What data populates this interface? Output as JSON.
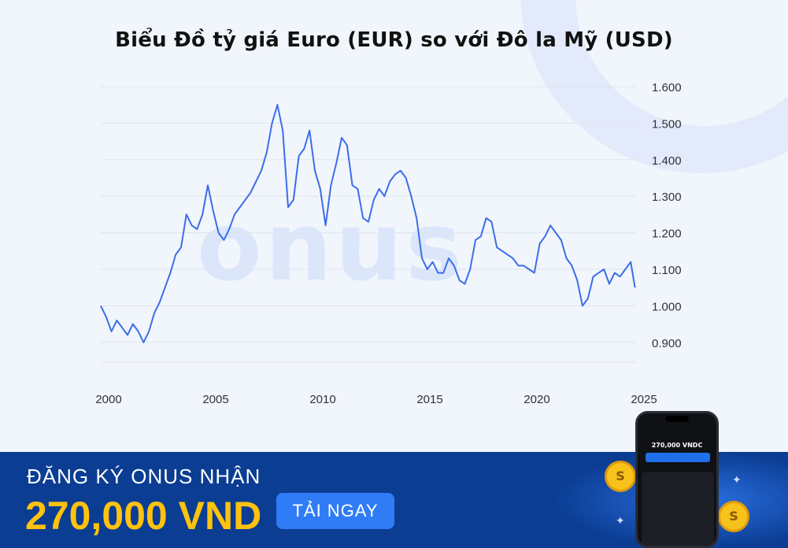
{
  "header": {
    "title": "Biểu Đồ tỷ giá Euro (EUR) so với Đô la Mỹ (USD)"
  },
  "watermark": {
    "text": "onus"
  },
  "chart_data": {
    "type": "line",
    "title": "Biểu Đồ tỷ giá Euro (EUR) so với Đô la Mỹ (USD)",
    "xlabel": "",
    "ylabel": "",
    "xlim": [
      2000,
      2025
    ],
    "ylim": [
      0.85,
      1.6
    ],
    "grid": true,
    "y_axis_side": "right",
    "x_ticks": [
      "2000",
      "2005",
      "2010",
      "2015",
      "2020",
      "2025"
    ],
    "y_ticks": [
      "0.900",
      "1.000",
      "1.100",
      "1.200",
      "1.300",
      "1.400",
      "1.500",
      "1.600"
    ],
    "line_color": "#3b6ee8",
    "series": [
      {
        "x": [
          2000.0,
          2000.25,
          2000.5,
          2000.75,
          2001.0,
          2001.25,
          2001.5,
          2001.75,
          2002.0,
          2002.25,
          2002.5,
          2002.75,
          2003.0,
          2003.25,
          2003.5,
          2003.75,
          2004.0,
          2004.25,
          2004.5,
          2004.75,
          2005.0,
          2005.25,
          2005.5,
          2005.75,
          2006.0,
          2006.25,
          2006.5,
          2006.75,
          2007.0,
          2007.25,
          2007.5,
          2007.75,
          2008.0,
          2008.25,
          2008.5,
          2008.75,
          2009.0,
          2009.25,
          2009.5,
          2009.75,
          2010.0,
          2010.25,
          2010.5,
          2010.75,
          2011.0,
          2011.25,
          2011.5,
          2011.75,
          2012.0,
          2012.25,
          2012.5,
          2012.75,
          2013.0,
          2013.25,
          2013.5,
          2013.75,
          2014.0,
          2014.25,
          2014.5,
          2014.75,
          2015.0,
          2015.25,
          2015.5,
          2015.75,
          2016.0,
          2016.25,
          2016.5,
          2016.75,
          2017.0,
          2017.25,
          2017.5,
          2017.75,
          2018.0,
          2018.25,
          2018.5,
          2018.75,
          2019.0,
          2019.25,
          2019.5,
          2019.75,
          2020.0,
          2020.25,
          2020.5,
          2020.75,
          2021.0,
          2021.25,
          2021.5,
          2021.75,
          2022.0,
          2022.25,
          2022.5,
          2022.75,
          2023.0,
          2023.25,
          2023.5,
          2023.75,
          2024.0,
          2024.25,
          2024.5,
          2024.75,
          2024.95
        ],
        "y": [
          1.0,
          0.97,
          0.93,
          0.96,
          0.94,
          0.92,
          0.95,
          0.93,
          0.9,
          0.93,
          0.98,
          1.01,
          1.05,
          1.09,
          1.14,
          1.16,
          1.25,
          1.22,
          1.21,
          1.25,
          1.33,
          1.26,
          1.2,
          1.18,
          1.21,
          1.25,
          1.27,
          1.29,
          1.31,
          1.34,
          1.37,
          1.42,
          1.5,
          1.55,
          1.48,
          1.27,
          1.29,
          1.41,
          1.43,
          1.48,
          1.37,
          1.32,
          1.22,
          1.33,
          1.39,
          1.46,
          1.44,
          1.33,
          1.32,
          1.24,
          1.23,
          1.29,
          1.32,
          1.3,
          1.34,
          1.36,
          1.37,
          1.35,
          1.3,
          1.24,
          1.13,
          1.1,
          1.12,
          1.09,
          1.09,
          1.13,
          1.11,
          1.07,
          1.06,
          1.1,
          1.18,
          1.19,
          1.24,
          1.23,
          1.16,
          1.15,
          1.14,
          1.13,
          1.11,
          1.11,
          1.1,
          1.09,
          1.17,
          1.19,
          1.22,
          1.2,
          1.18,
          1.13,
          1.11,
          1.07,
          1.0,
          1.02,
          1.08,
          1.09,
          1.1,
          1.06,
          1.09,
          1.08,
          1.1,
          1.12,
          1.05
        ]
      }
    ]
  },
  "banner": {
    "line1": "ĐĂNG KÝ ONUS NHẬN",
    "line2": "270,000 VND",
    "cta_label": "TẢI NGAY",
    "phone_amount": "270,000 VNDC"
  }
}
